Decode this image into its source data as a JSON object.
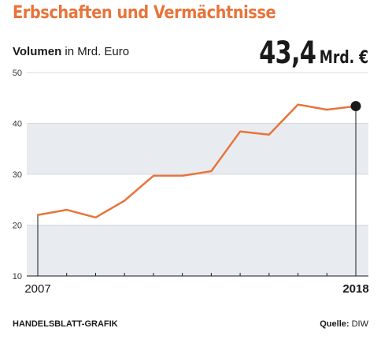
{
  "header": {
    "title": "Erbschaften und Vermächtnisse",
    "subtitle_bold": "Volumen",
    "subtitle_rest": "in Mrd. Euro",
    "callout_value": "43,4",
    "callout_unit": "Mrd. €"
  },
  "footer": {
    "publisher": "HANDELSBLATT-GRAFIK",
    "source_label": "Quelle:",
    "source_value": "DIW"
  },
  "colors": {
    "line": "#e8743b",
    "band": "#e8ecf1",
    "marker": "#1a1a1a"
  },
  "chart_data": {
    "type": "line",
    "title": "Erbschaften und Vermächtnisse",
    "subtitle": "Volumen in Mrd. Euro",
    "xlabel": "",
    "ylabel": "",
    "x": [
      2007,
      2008,
      2009,
      2010,
      2011,
      2012,
      2013,
      2014,
      2015,
      2016,
      2017,
      2018
    ],
    "series": [
      {
        "values": [
          22.0,
          23.0,
          21.5,
          24.8,
          29.7,
          29.7,
          30.6,
          38.4,
          37.8,
          43.7,
          42.7,
          43.4
        ]
      }
    ],
    "xlim": [
      2007,
      2018
    ],
    "ylim": [
      10,
      50
    ],
    "yticks": [
      10,
      20,
      30,
      40,
      50
    ],
    "xtick_labels": [
      {
        "x": 2007,
        "label": "2007"
      },
      {
        "x": 2018,
        "label": "2018"
      }
    ],
    "grid": "horizontal bands",
    "highlight": {
      "x": 2018,
      "value": 43.4,
      "label": "43,4 Mrd. €"
    }
  }
}
